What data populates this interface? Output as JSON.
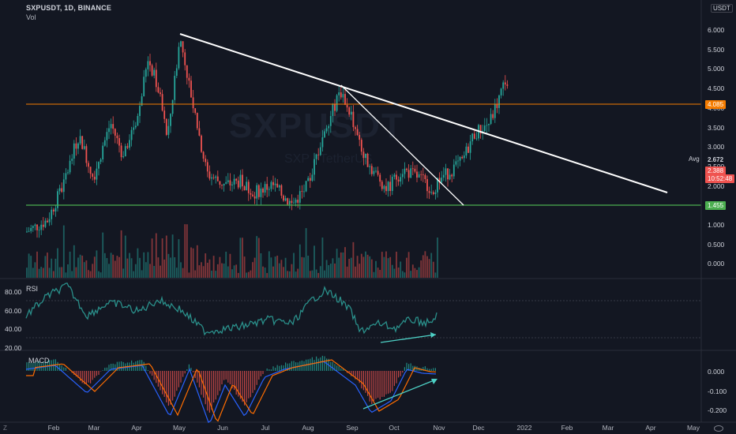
{
  "header": {
    "symbol_line": "SXPUSDT, 1D, BINANCE",
    "volume_label": "Vol",
    "currency_badge": "USDT"
  },
  "watermark": {
    "symbol": "SXPUSDT",
    "sub": "SXP / TetherUS"
  },
  "price_axis": {
    "labels": [
      "6.000",
      "5.500",
      "5.000",
      "4.500",
      "4.000",
      "3.500",
      "3.000",
      "2.500",
      "2.000",
      "1.500",
      "1.000",
      "0.500",
      "0.000"
    ],
    "avg_label": "Avg",
    "avg_value": "2.672",
    "resistance_value": "4.085",
    "current_price": "2.388",
    "countdown": "10:52:48",
    "support_value": "1.455"
  },
  "rsi_pane": {
    "title": "RSI",
    "labels": [
      "80.00",
      "60.00",
      "40.00",
      "20.00"
    ]
  },
  "macd_pane": {
    "title": "MACD",
    "labels": [
      "0.000",
      "-0.100",
      "-0.200"
    ]
  },
  "time_axis": {
    "labels": [
      "Feb",
      "Mar",
      "Apr",
      "May",
      "Jun",
      "Jul",
      "Aug",
      "Sep",
      "Oct",
      "Nov",
      "Dec",
      "2022",
      "Feb",
      "Mar",
      "Apr",
      "May"
    ]
  },
  "footer": {
    "left_icon": "Z",
    "right_icon": "eye-icon"
  },
  "colors": {
    "background": "#131722",
    "up": "#26a69a",
    "down": "#ef5350",
    "resistance": "#f57c00",
    "support": "#4caf50",
    "trendline": "#ffffff",
    "rsi_line": "#2a8f8a",
    "macd_line": "#2962ff",
    "signal_line": "#ff6d00",
    "annotation_arrow": "#4dd0c5"
  }
}
